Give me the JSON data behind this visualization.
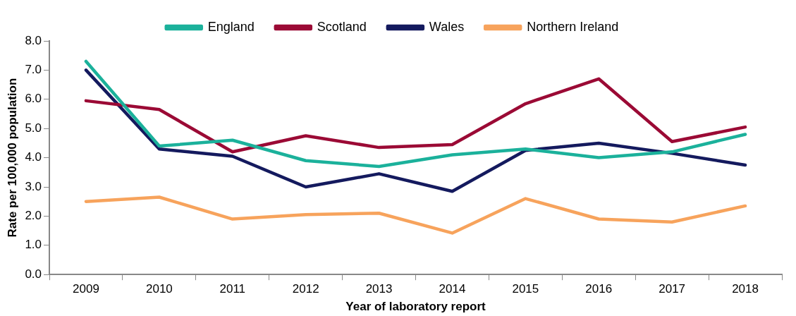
{
  "chart_data": {
    "type": "line",
    "xlabel": "Year of laboratory report",
    "ylabel": "Rate per 100,000 population",
    "categories": [
      "2009",
      "2010",
      "2011",
      "2012",
      "2013",
      "2014",
      "2015",
      "2016",
      "2017",
      "2018"
    ],
    "series": [
      {
        "name": "England",
        "color": "#1bb19b",
        "values": [
          7.3,
          4.4,
          4.6,
          3.9,
          3.7,
          4.1,
          4.3,
          4.0,
          4.2,
          4.8
        ]
      },
      {
        "name": "Scotland",
        "color": "#9b0a35",
        "values": [
          5.95,
          5.65,
          4.2,
          4.75,
          4.35,
          4.45,
          5.85,
          6.7,
          4.55,
          5.05
        ]
      },
      {
        "name": "Wales",
        "color": "#141a5e",
        "values": [
          7.0,
          4.3,
          4.05,
          3.0,
          3.45,
          2.85,
          4.25,
          4.5,
          4.15,
          3.75
        ]
      },
      {
        "name": "Northern Ireland",
        "color": "#f7a35c",
        "values": [
          2.5,
          2.65,
          1.9,
          2.05,
          2.1,
          1.42,
          2.6,
          1.9,
          1.8,
          2.35
        ]
      }
    ],
    "ylim": [
      0,
      8
    ],
    "yticks": [
      {
        "value": 0,
        "label": "0.0"
      },
      {
        "value": 1,
        "label": "1.0"
      },
      {
        "value": 2,
        "label": "2.0"
      },
      {
        "value": 3,
        "label": "3.0"
      },
      {
        "value": 4,
        "label": "4.0"
      },
      {
        "value": 5,
        "label": "5.0"
      },
      {
        "value": 6,
        "label": "6.0"
      },
      {
        "value": 7,
        "label": "7.0"
      },
      {
        "value": 8,
        "label": "8.0"
      }
    ],
    "grid": false,
    "legend": "top",
    "marker": "none",
    "line_style": "solid"
  }
}
